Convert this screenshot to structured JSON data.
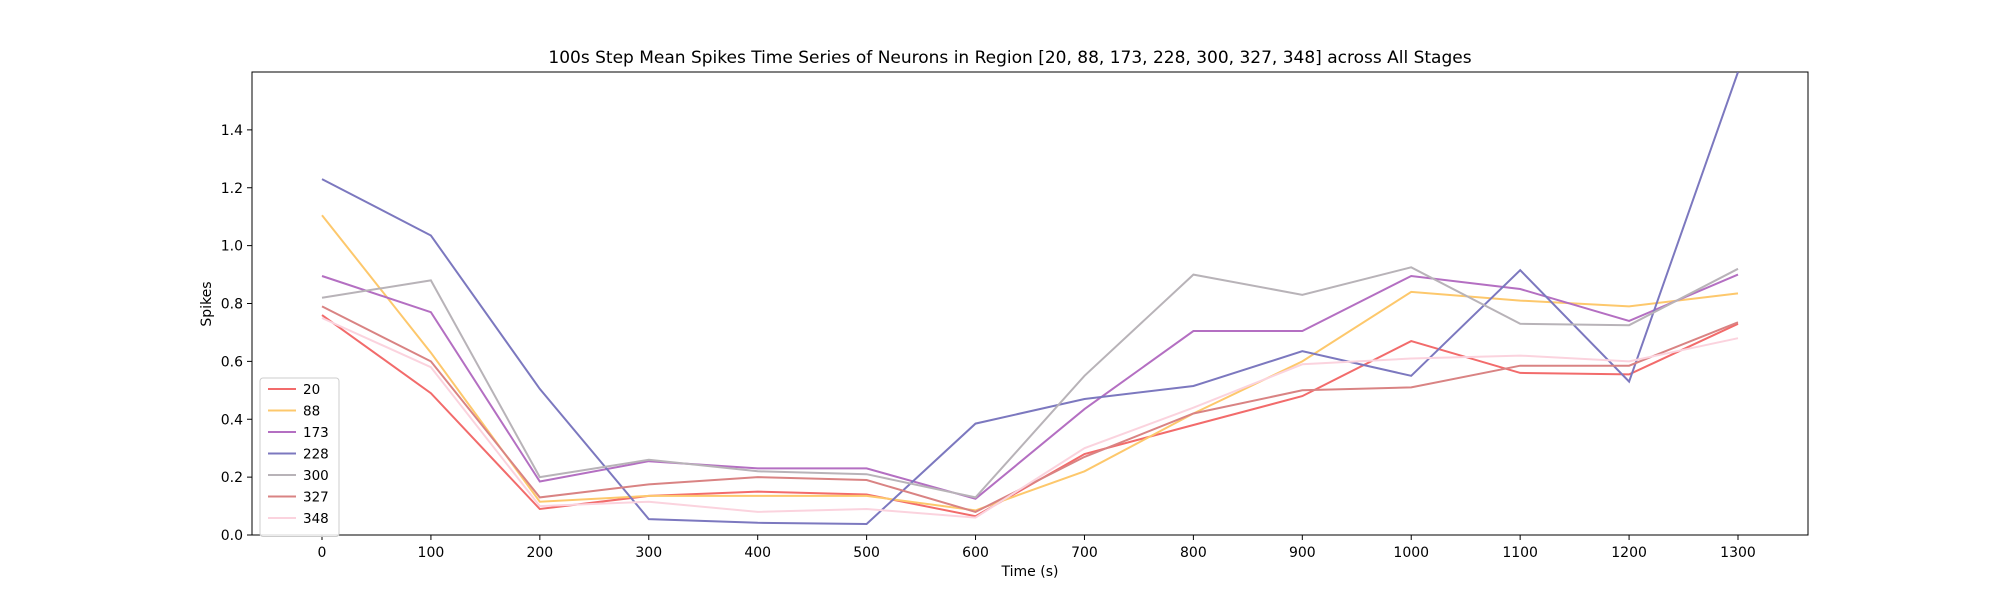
{
  "chart_data": {
    "type": "line",
    "title": "100s Step Mean Spikes Time Series of Neurons in Region [20, 88, 173, 228, 300, 327, 348] across All Stages",
    "xlabel": "Time (s)",
    "ylabel": "Spikes",
    "x": [
      0,
      100,
      200,
      300,
      400,
      500,
      600,
      700,
      800,
      900,
      1000,
      1100,
      1200,
      1300
    ],
    "xticks": [
      0,
      100,
      200,
      300,
      400,
      500,
      600,
      700,
      800,
      900,
      1000,
      1100,
      1200,
      1300
    ],
    "yticks": [
      0.0,
      0.2,
      0.4,
      0.6,
      0.8,
      1.0,
      1.2,
      1.4
    ],
    "xlim": [
      -100,
      2100
    ],
    "ylim": [
      0,
      1.6
    ],
    "grid": false,
    "legend_position": "lower-left",
    "series": [
      {
        "name": "20",
        "color": "#f26b6b",
        "values": [
          0.76,
          0.49,
          0.09,
          0.135,
          0.15,
          0.14,
          0.065,
          0.28,
          0.38,
          0.48,
          0.67,
          0.56,
          0.555,
          0.73
        ]
      },
      {
        "name": "88",
        "color": "#fdc86c",
        "values": [
          1.105,
          0.63,
          0.115,
          0.135,
          0.135,
          0.135,
          0.085,
          0.22,
          0.42,
          0.6,
          0.84,
          0.81,
          0.79,
          0.835
        ]
      },
      {
        "name": "173",
        "color": "#b46fc2",
        "values": [
          0.895,
          0.77,
          0.185,
          0.255,
          0.23,
          0.23,
          0.125,
          0.435,
          0.705,
          0.705,
          0.895,
          0.85,
          0.74,
          0.9
        ]
      },
      {
        "name": "228",
        "color": "#7c78bf",
        "values": [
          1.23,
          1.035,
          0.505,
          0.055,
          0.042,
          0.038,
          0.385,
          0.47,
          0.515,
          0.635,
          0.55,
          0.915,
          0.53,
          1.6
        ]
      },
      {
        "name": "300",
        "color": "#b8b3b8",
        "values": [
          0.82,
          0.88,
          0.2,
          0.26,
          0.22,
          0.21,
          0.13,
          0.55,
          0.9,
          0.83,
          0.925,
          0.73,
          0.725,
          0.92
        ]
      },
      {
        "name": "327",
        "color": "#d98383",
        "values": [
          0.79,
          0.6,
          0.13,
          0.175,
          0.2,
          0.19,
          0.08,
          0.27,
          0.42,
          0.5,
          0.51,
          0.585,
          0.585,
          0.735
        ]
      },
      {
        "name": "348",
        "color": "#fbd3de",
        "values": [
          0.75,
          0.58,
          0.1,
          0.115,
          0.08,
          0.09,
          0.06,
          0.3,
          0.44,
          0.59,
          0.61,
          0.62,
          0.6,
          0.68
        ]
      }
    ]
  }
}
